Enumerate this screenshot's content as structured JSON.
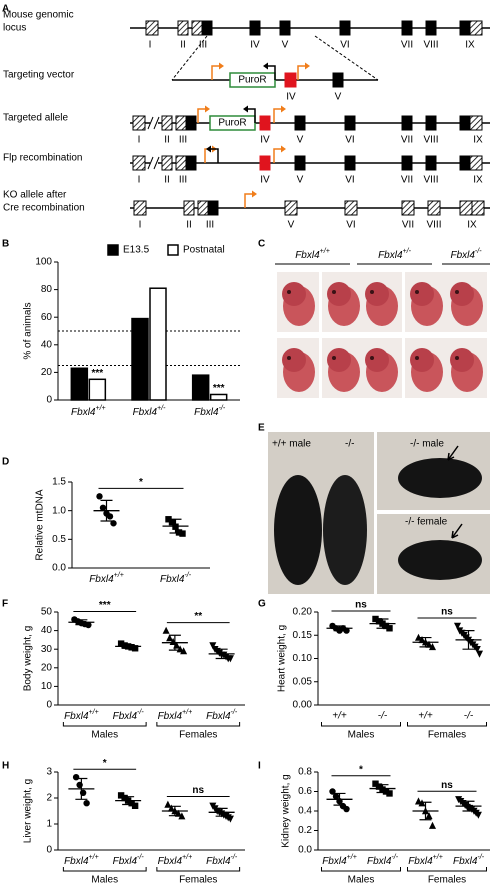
{
  "diagram": {
    "panel": "A",
    "rows": [
      {
        "label": [
          "Mouse genomic",
          "locus"
        ],
        "exons": [
          "I",
          "II",
          "III",
          "IV",
          "V",
          "VI",
          "VII",
          "VIII",
          "IX"
        ]
      },
      {
        "label": [
          "Targeting vector"
        ],
        "exons": [
          "IV",
          "V"
        ],
        "cassette": "PuroR"
      },
      {
        "label": [
          "Targeted allele"
        ],
        "exons": [
          "I",
          "II",
          "III",
          "IV",
          "V",
          "VI",
          "VII",
          "VIII",
          "IX"
        ],
        "cassette": "PuroR"
      },
      {
        "label": [
          "Flp recombination"
        ],
        "exons": [
          "I",
          "II",
          "III",
          "IV",
          "V",
          "VI",
          "VII",
          "VIII",
          "IX"
        ]
      },
      {
        "label": [
          "KO allele after",
          "Cre recombination"
        ],
        "exons": [
          "I",
          "II",
          "III",
          "V",
          "VI",
          "VII",
          "VIII",
          "IX"
        ]
      }
    ]
  },
  "photos": [
    {
      "panel": "C",
      "labels": [
        "Fbxl4+/+",
        "Fbxl4+/-",
        "Fbxl4-/-"
      ]
    },
    {
      "panel": "E",
      "labels": [
        "+/+ male",
        "-/-",
        "-/- male",
        "-/- female"
      ]
    }
  ],
  "chart_data": [
    {
      "panel": "B",
      "type": "bar",
      "y_label": "% of animals",
      "categories": [
        "Fbxl4+/+",
        "Fbxl4+/-",
        "Fbxl4-/-"
      ],
      "series": [
        {
          "name": "E13.5",
          "color": "#000000",
          "values": [
            23,
            59,
            18
          ]
        },
        {
          "name": "Postnatal",
          "color": "#ffffff",
          "values": [
            15,
            81,
            4
          ],
          "significance": [
            "***",
            null,
            "***"
          ]
        }
      ],
      "ylim": [
        0,
        100
      ],
      "yticks": [
        0,
        20,
        40,
        60,
        80,
        100
      ],
      "reference_lines": [
        25,
        50
      ],
      "legend": "top"
    },
    {
      "panel": "D",
      "type": "strip",
      "y_label": "Relative mtDNA",
      "categories": [
        "Fbxl4+/+",
        "Fbxl4-/-"
      ],
      "markers": [
        "circle",
        "square"
      ],
      "points": [
        [
          1.25,
          1.05,
          0.95,
          0.9,
          0.78
        ],
        [
          0.85,
          0.8,
          0.72,
          0.62,
          0.6
        ]
      ],
      "means": [
        1.0,
        0.73
      ],
      "sd": [
        0.18,
        0.12
      ],
      "significance": [
        "*"
      ],
      "ylim": [
        0,
        1.5
      ],
      "yticks": [
        {
          "value": 0,
          "label": "0.0"
        },
        0.5,
        {
          "value": 1,
          "label": "1.0"
        },
        1.5
      ]
    },
    {
      "panel": "F",
      "type": "strip",
      "y_label": "Body weight, g",
      "categories": [
        "Fbxl4+/+",
        "Fbxl4-/-",
        "Fbxl4+/+",
        "Fbxl4-/-"
      ],
      "groups": [
        "Males",
        "Females"
      ],
      "markers": [
        "circle",
        "square",
        "triangle",
        "triangle-down"
      ],
      "points": [
        [
          46,
          45,
          44,
          43.5,
          43
        ],
        [
          33,
          32,
          31.5,
          31,
          30.5
        ],
        [
          40,
          36,
          34,
          32,
          30,
          29
        ],
        [
          32,
          30,
          29,
          28,
          27,
          27,
          26,
          25,
          25
        ]
      ],
      "means": [
        44.5,
        31.5,
        33.5,
        27.5
      ],
      "sd": [
        1.3,
        1,
        4,
        2.5
      ],
      "significance": [
        "***",
        "**"
      ],
      "ylim": [
        0,
        50
      ],
      "yticks": [
        0,
        10,
        20,
        30,
        40,
        50
      ]
    },
    {
      "panel": "G",
      "type": "strip",
      "y_label": "Heart weight, g",
      "categories": [
        "+/+",
        "-/-",
        "+/+",
        "-/-"
      ],
      "groups": [
        "Males",
        "Females"
      ],
      "markers": [
        "circle",
        "square",
        "triangle",
        "triangle-down"
      ],
      "points": [
        [
          0.17,
          0.165,
          0.16,
          0.165,
          0.16
        ],
        [
          0.185,
          0.18,
          0.175,
          0.17,
          0.165
        ],
        [
          0.145,
          0.14,
          0.135,
          0.13,
          0.125
        ],
        [
          0.17,
          0.16,
          0.155,
          0.15,
          0.145,
          0.14,
          0.135,
          0.13,
          0.125,
          0.12,
          0.11
        ]
      ],
      "means": [
        0.165,
        0.175,
        0.135,
        0.14
      ],
      "sd": [
        0.005,
        0.01,
        0.01,
        0.02
      ],
      "significance": [
        "ns",
        "ns"
      ],
      "ylim": [
        0,
        0.2
      ],
      "yticks": [
        {
          "value": 0,
          "label": "0.00"
        },
        0.05,
        {
          "value": 0.1,
          "label": "0.10"
        },
        0.15,
        {
          "value": 0.2,
          "label": "0.20"
        }
      ]
    },
    {
      "panel": "H",
      "type": "strip",
      "y_label": "Liver weight, g",
      "categories": [
        "Fbxl4+/+",
        "Fbxl4-/-",
        "Fbxl4+/+",
        "Fbxl4-/-"
      ],
      "groups": [
        "Males",
        "Females"
      ],
      "markers": [
        "circle",
        "square",
        "triangle",
        "triangle-down"
      ],
      "points": [
        [
          2.8,
          2.5,
          2.2,
          1.8
        ],
        [
          2.1,
          2.0,
          1.9,
          1.8,
          1.7
        ],
        [
          1.75,
          1.6,
          1.5,
          1.4,
          1.3
        ],
        [
          1.7,
          1.6,
          1.5,
          1.45,
          1.4,
          1.35,
          1.3,
          1.25,
          1.2
        ]
      ],
      "means": [
        2.35,
        1.9,
        1.5,
        1.45
      ],
      "sd": [
        0.4,
        0.15,
        0.18,
        0.15
      ],
      "significance": [
        "*",
        "ns"
      ],
      "ylim": [
        0,
        3
      ],
      "yticks": [
        0,
        1,
        2,
        3
      ]
    },
    {
      "panel": "I",
      "type": "strip",
      "y_label": "Kidney weight, g",
      "categories": [
        "Fbxl4+/+",
        "Fbxl4-/-",
        "Fbxl4+/+",
        "Fbxl4-/-"
      ],
      "groups": [
        "Males",
        "Females"
      ],
      "markers": [
        "circle",
        "square",
        "triangle",
        "triangle-down"
      ],
      "points": [
        [
          0.6,
          0.55,
          0.5,
          0.45,
          0.42
        ],
        [
          0.68,
          0.65,
          0.62,
          0.6,
          0.58
        ],
        [
          0.5,
          0.48,
          0.4,
          0.35,
          0.25
        ],
        [
          0.52,
          0.5,
          0.48,
          0.46,
          0.44,
          0.43,
          0.42,
          0.4,
          0.38,
          0.36
        ]
      ],
      "means": [
        0.52,
        0.63,
        0.4,
        0.45
      ],
      "sd": [
        0.06,
        0.04,
        0.09,
        0.05
      ],
      "significance": [
        "*",
        "ns"
      ],
      "ylim": [
        0,
        0.8
      ],
      "yticks": [
        {
          "value": 0,
          "label": "0.0"
        },
        0.2,
        0.4,
        0.6,
        0.8
      ]
    }
  ]
}
